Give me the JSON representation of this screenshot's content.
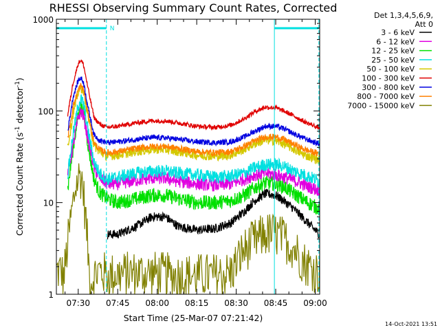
{
  "chart_data": {
    "type": "line",
    "title": "RHESSI Observing Summary Count Rates, Corrected",
    "xlabel": "Start Time (25-Mar-07 07:21:42)",
    "ylabel_main": "Corrected Count Rate (s",
    "ylabel_sup1": "-1",
    "ylabel_mid": " detector",
    "ylabel_sup2": "-1",
    "ylabel_end": ")",
    "ylabel": "Corrected Count Rate (s^-1 detector^-1)",
    "yscale": "log",
    "ylim": [
      1,
      1000
    ],
    "xlim_minutes": [
      21.7,
      121.7
    ],
    "x_tick_labels": [
      "07:30",
      "07:45",
      "08:00",
      "08:15",
      "08:30",
      "08:45",
      "09:00"
    ],
    "x_tick_minutes": [
      30,
      45,
      60,
      75,
      90,
      105,
      120
    ],
    "y_tick_labels": [
      "1",
      "10",
      "100",
      "1000"
    ],
    "y_tick_values": [
      1,
      10,
      100,
      1000
    ],
    "legend_title_line1": "Det 1,3,4,5,6,9,",
    "legend_title_line2": "Att 0",
    "legend_placement": "top-right, outside plot",
    "night_marker_label": "N",
    "night_intervals_minutes": [
      [
        21.7,
        40.7
      ],
      [
        104.5,
        121.4
      ]
    ],
    "boundary_lines_minutes": [
      40.7,
      104.5,
      121.4
    ],
    "timestamp": "14-Oct-2021 13:51",
    "series": [
      {
        "name": "3 - 6 keV",
        "color": "#000000",
        "x": [
          21.7,
          40.0,
          41.0,
          45.0,
          52.0,
          58.0,
          63.0,
          68.0,
          75.0,
          82.0,
          88.0,
          93.0,
          97.0,
          101.0,
          105.0,
          108.0,
          112.0,
          116.0,
          120.0,
          121.7
        ],
        "values": [
          null,
          null,
          4.5,
          4.5,
          5.5,
          7.0,
          7.0,
          5.5,
          5.0,
          5.2,
          6.0,
          8.0,
          10.5,
          12.5,
          12.0,
          10.5,
          8.5,
          6.5,
          5.0,
          4.5
        ]
      },
      {
        "name": "6 - 12 keV",
        "color": "#e000e0",
        "x": [
          21.7,
          24.0,
          26.0,
          28.0,
          30.0,
          31.0,
          32.0,
          34.0,
          36.0,
          38.0,
          41.0,
          45.0,
          52.0,
          58.0,
          63.0,
          68.0,
          75.0,
          82.0,
          88.0,
          93.0,
          97.0,
          101.0,
          105.0,
          108.0,
          112.0,
          116.0,
          120.0,
          121.7
        ],
        "values": [
          null,
          null,
          20,
          42,
          85,
          100,
          88,
          45,
          24,
          19,
          16,
          16,
          17.5,
          18.5,
          18.5,
          17,
          16,
          15.5,
          16,
          18,
          20,
          21,
          20,
          19,
          17.5,
          15.5,
          14,
          13.5
        ]
      },
      {
        "name": "12 - 25 keV",
        "color": "#00e000",
        "x": [
          21.7,
          24.0,
          26.0,
          28.0,
          30.0,
          31.0,
          32.0,
          34.0,
          36.0,
          38.0,
          41.0,
          45.0,
          52.0,
          58.0,
          63.0,
          68.0,
          75.0,
          82.0,
          88.0,
          93.0,
          97.0,
          101.0,
          105.0,
          108.0,
          112.0,
          116.0,
          120.0,
          121.7
        ],
        "values": [
          null,
          null,
          14,
          38,
          90,
          110,
          95,
          38,
          18,
          13,
          11,
          10,
          11,
          12,
          12,
          11,
          10,
          10,
          10.5,
          12,
          14.5,
          16.5,
          16,
          15,
          12.5,
          10.5,
          9.0,
          8.5
        ]
      },
      {
        "name": "25 - 50 keV",
        "color": "#00e0e0",
        "x": [
          21.7,
          24.0,
          26.0,
          28.0,
          30.0,
          31.0,
          32.0,
          34.0,
          36.0,
          38.0,
          41.0,
          45.0,
          52.0,
          58.0,
          63.0,
          68.0,
          75.0,
          82.0,
          88.0,
          93.0,
          97.0,
          101.0,
          105.0,
          108.0,
          112.0,
          116.0,
          120.0,
          121.7
        ],
        "values": [
          null,
          null,
          20,
          55,
          115,
          135,
          120,
          55,
          28,
          21,
          18,
          19,
          21,
          22,
          22,
          21,
          20,
          19,
          19.5,
          21,
          24,
          26,
          26,
          25,
          22,
          20,
          18,
          17
        ]
      },
      {
        "name": "50 - 100 keV",
        "color": "#d4c800",
        "x": [
          21.7,
          24.0,
          26.0,
          28.0,
          30.0,
          31.0,
          32.0,
          34.0,
          36.0,
          38.0,
          41.0,
          45.0,
          52.0,
          58.0,
          63.0,
          68.0,
          75.0,
          82.0,
          88.0,
          93.0,
          97.0,
          101.0,
          105.0,
          108.0,
          112.0,
          116.0,
          120.0,
          121.7
        ],
        "values": [
          null,
          null,
          40,
          90,
          160,
          180,
          165,
          80,
          42,
          36,
          32,
          33,
          36,
          38,
          38,
          36,
          33,
          32,
          33,
          38,
          44,
          48,
          47,
          44,
          38,
          33,
          30,
          29
        ]
      },
      {
        "name": "100 - 300 keV",
        "color": "#e00000",
        "x": [
          21.7,
          24.0,
          26.0,
          28.0,
          30.0,
          31.0,
          32.0,
          34.0,
          36.0,
          38.0,
          41.0,
          45.0,
          52.0,
          58.0,
          63.0,
          68.0,
          75.0,
          82.0,
          88.0,
          93.0,
          97.0,
          101.0,
          105.0,
          108.0,
          112.0,
          116.0,
          120.0,
          121.7
        ],
        "values": [
          null,
          null,
          90,
          200,
          330,
          360,
          320,
          160,
          85,
          72,
          66,
          68,
          74,
          78,
          78,
          74,
          68,
          66,
          70,
          82,
          98,
          110,
          108,
          100,
          88,
          76,
          68,
          65
        ]
      },
      {
        "name": "300 - 800 keV",
        "color": "#0000e0",
        "x": [
          21.7,
          24.0,
          26.0,
          28.0,
          30.0,
          31.0,
          32.0,
          34.0,
          36.0,
          38.0,
          41.0,
          45.0,
          52.0,
          58.0,
          63.0,
          68.0,
          75.0,
          82.0,
          88.0,
          93.0,
          97.0,
          101.0,
          105.0,
          108.0,
          112.0,
          116.0,
          120.0,
          121.7
        ],
        "values": [
          null,
          null,
          60,
          140,
          215,
          230,
          205,
          100,
          55,
          48,
          45,
          46,
          49,
          51,
          51,
          49,
          46,
          45,
          46,
          52,
          60,
          68,
          68,
          64,
          56,
          50,
          45,
          44
        ]
      },
      {
        "name": "800 - 7000 keV",
        "color": "#ff8000",
        "x": [
          21.7,
          24.0,
          26.0,
          28.0,
          30.0,
          31.0,
          32.0,
          34.0,
          36.0,
          38.0,
          41.0,
          45.0,
          52.0,
          58.0,
          63.0,
          68.0,
          75.0,
          82.0,
          88.0,
          93.0,
          97.0,
          101.0,
          105.0,
          108.0,
          112.0,
          116.0,
          120.0,
          121.7
        ],
        "values": [
          null,
          null,
          50,
          110,
          170,
          190,
          170,
          85,
          45,
          38,
          35,
          36,
          39,
          41,
          41,
          39,
          36,
          35,
          36,
          41,
          47,
          52,
          52,
          49,
          43,
          38,
          35,
          34
        ]
      },
      {
        "name": "7000 - 15000 keV",
        "color": "#808000",
        "x": [
          21.7,
          23.5,
          24.5,
          27.0,
          29.0,
          30.5,
          31.5,
          33.0,
          34.5,
          36.0,
          38.0,
          41.0,
          50.0,
          58.0,
          66.0,
          75.0,
          82.0,
          88.0,
          92.0,
          96.0,
          101.0,
          105.0,
          108.0,
          112.0,
          116.0,
          120.0,
          121.7
        ],
        "values": [
          1.8,
          1.8,
          1.5,
          6.0,
          15,
          20,
          18,
          6,
          1.3,
          1.6,
          1.8,
          1.6,
          1.7,
          1.7,
          1.6,
          1.6,
          1.6,
          1.7,
          2.8,
          3.6,
          4.5,
          4.5,
          4.0,
          3.2,
          2.2,
          1.8,
          1.7
        ]
      }
    ]
  }
}
